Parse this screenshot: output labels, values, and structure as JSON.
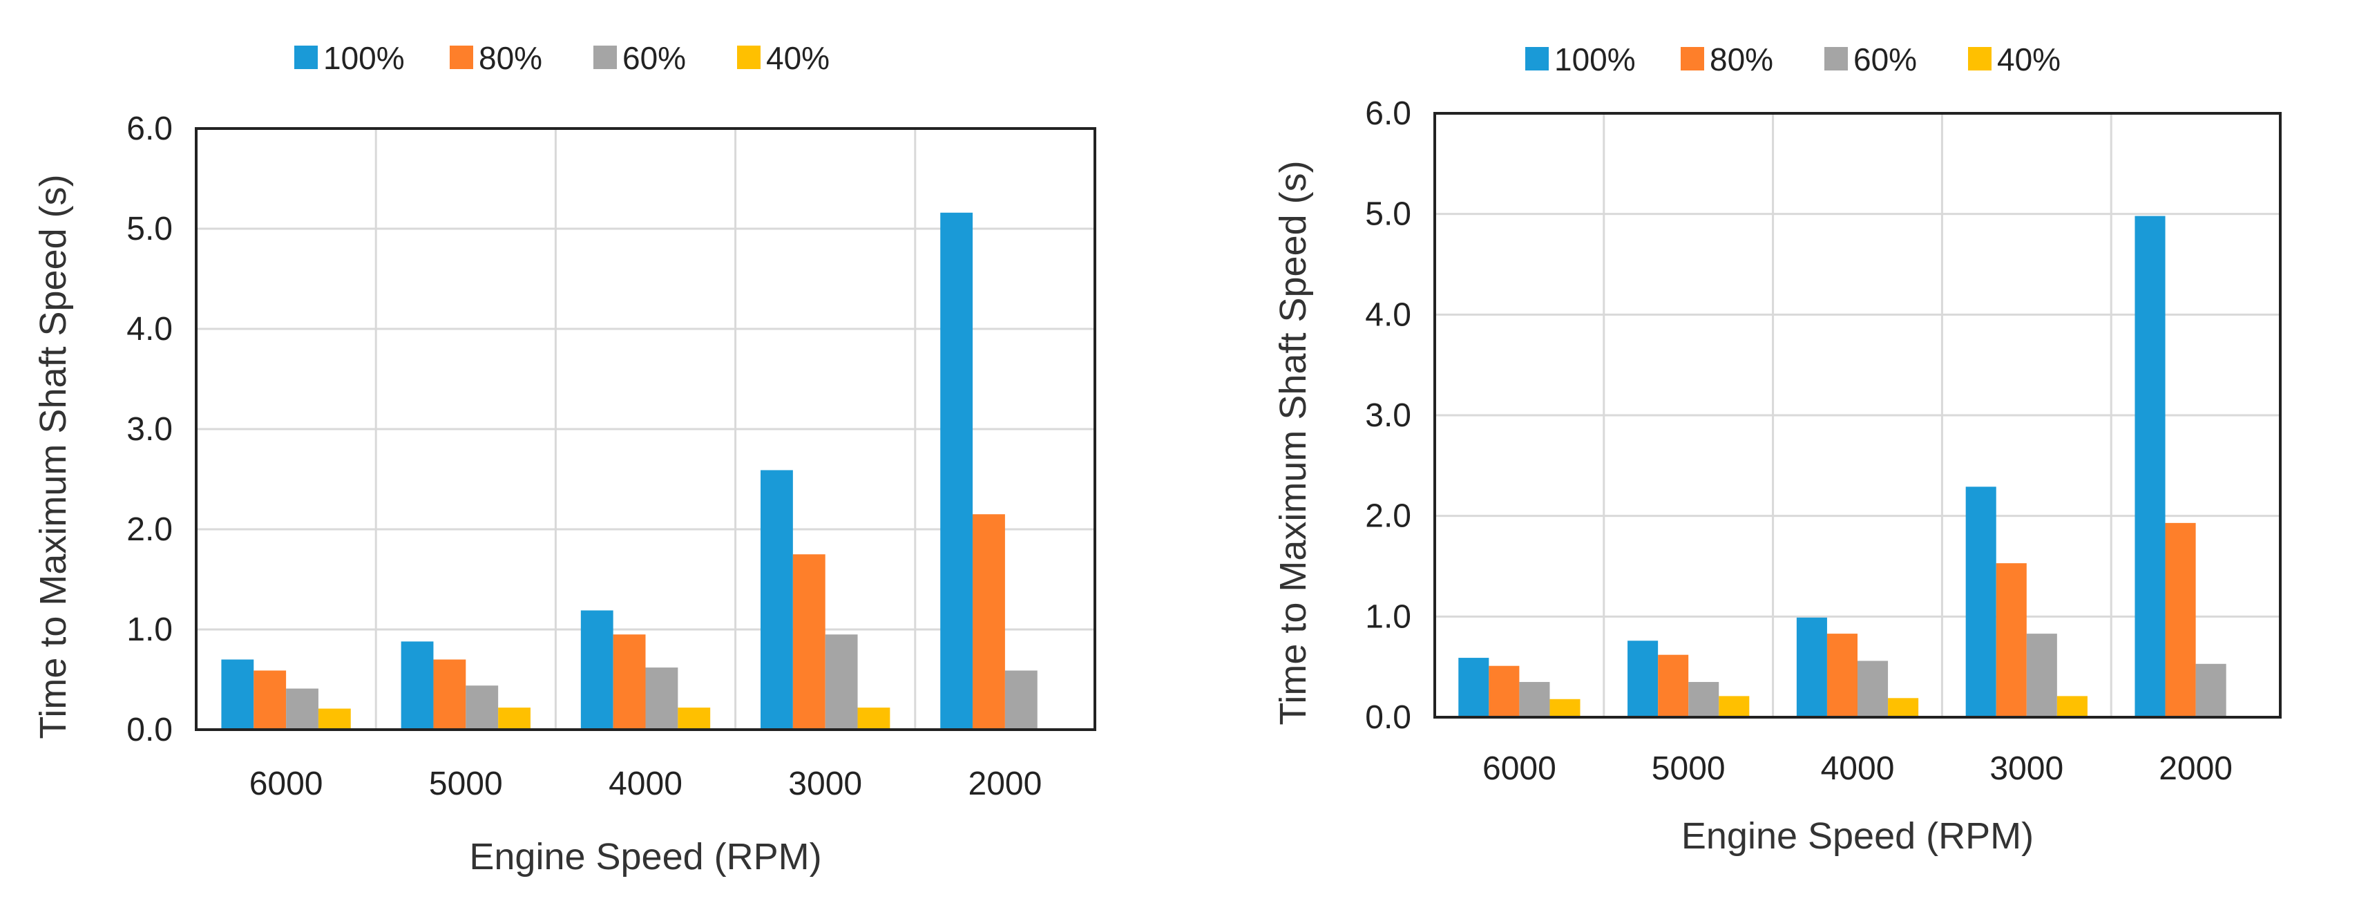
{
  "chart_data": [
    {
      "type": "bar",
      "categories": [
        "6000",
        "5000",
        "4000",
        "3000",
        "2000"
      ],
      "xlabel": "Engine Speed (RPM)",
      "ylabel": "Time to Maximum Shaft Speed (s)",
      "ylim": [
        0,
        6
      ],
      "yticks": [
        "0.0",
        "1.0",
        "2.0",
        "3.0",
        "4.0",
        "5.0",
        "6.0"
      ],
      "grid": true,
      "legend_placement": "top",
      "series": [
        {
          "name": "100%",
          "color": "#1a9ad7",
          "values": [
            0.7,
            0.88,
            1.19,
            2.59,
            5.16
          ]
        },
        {
          "name": "80%",
          "color": "#fe7f2a",
          "values": [
            0.59,
            0.7,
            0.95,
            1.75,
            2.15
          ]
        },
        {
          "name": "60%",
          "color": "#a5a5a5",
          "values": [
            0.41,
            0.44,
            0.62,
            0.95,
            0.59
          ]
        },
        {
          "name": "40%",
          "color": "#ffc000",
          "values": [
            0.21,
            0.22,
            0.22,
            0.22,
            0
          ]
        }
      ]
    },
    {
      "type": "bar",
      "categories": [
        "6000",
        "5000",
        "4000",
        "3000",
        "2000"
      ],
      "xlabel": "Engine Speed (RPM)",
      "ylabel": "Time to Maximum Shaft Speed (s)",
      "ylim": [
        0,
        6
      ],
      "yticks": [
        "0.0",
        "1.0",
        "2.0",
        "3.0",
        "4.0",
        "5.0",
        "6.0"
      ],
      "grid": true,
      "legend_placement": "top",
      "series": [
        {
          "name": "100%",
          "color": "#1a9ad7",
          "values": [
            0.59,
            0.76,
            0.99,
            2.29,
            4.98
          ]
        },
        {
          "name": "80%",
          "color": "#fe7f2a",
          "values": [
            0.51,
            0.62,
            0.83,
            1.53,
            1.93
          ]
        },
        {
          "name": "60%",
          "color": "#a5a5a5",
          "values": [
            0.35,
            0.35,
            0.56,
            0.83,
            0.53
          ]
        },
        {
          "name": "40%",
          "color": "#ffc000",
          "values": [
            0.18,
            0.21,
            0.19,
            0.21,
            0
          ]
        }
      ]
    }
  ]
}
